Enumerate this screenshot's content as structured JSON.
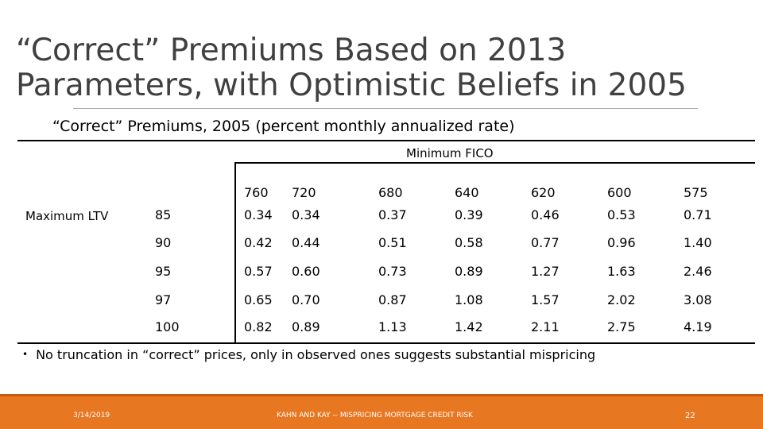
{
  "slide": {
    "title_line1": "“Correct” Premiums Based on 2013",
    "title_line2": "Parameters, with Optimistic Beliefs in 2005",
    "subtitle": "“Correct” Premiums, 2005 (percent monthly annualized rate)"
  },
  "table": {
    "column_group_label": "Minimum FICO",
    "row_group_label": "Maximum LTV",
    "columns": [
      "760",
      "720",
      "680",
      "640",
      "620",
      "600",
      "575"
    ],
    "rows": [
      {
        "ltv": "85",
        "values": [
          "0.34",
          "0.34",
          "0.37",
          "0.39",
          "0.46",
          "0.53",
          "0.71"
        ]
      },
      {
        "ltv": "90",
        "values": [
          "0.42",
          "0.44",
          "0.51",
          "0.58",
          "0.77",
          "0.96",
          "1.40"
        ]
      },
      {
        "ltv": "95",
        "values": [
          "0.57",
          "0.60",
          "0.73",
          "0.89",
          "1.27",
          "1.63",
          "2.46"
        ]
      },
      {
        "ltv": "97",
        "values": [
          "0.65",
          "0.70",
          "0.87",
          "1.08",
          "1.57",
          "2.02",
          "3.08"
        ]
      },
      {
        "ltv": "100",
        "values": [
          "0.82",
          "0.89",
          "1.13",
          "1.42",
          "2.11",
          "2.75",
          "4.19"
        ]
      }
    ]
  },
  "bullets": [
    "No truncation in “correct” prices, only in observed ones suggests substantial mispricing"
  ],
  "footer": {
    "date": "3/14/2019",
    "center": "KAHN AND KAY -- MISPRICING MORTGAGE CREDIT RISK",
    "page_number": "22",
    "bar_color": "#e87722"
  }
}
